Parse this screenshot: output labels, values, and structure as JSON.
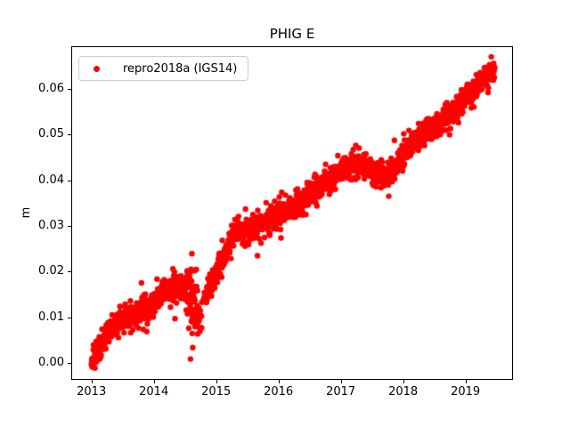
{
  "chart_data": {
    "type": "scatter",
    "title": "PHIG E",
    "xlabel": "",
    "ylabel": "m",
    "grid": false,
    "legend_position": "upper left",
    "series": [
      {
        "name": "repro2018a (IGS14)",
        "color": "#ff0000",
        "marker": "point",
        "marker_radius_px": 3.2
      }
    ],
    "xlim": [
      2012.676,
      2019.762
    ],
    "ylim": [
      -0.0037,
      0.06935
    ],
    "x_ticks": [
      2013,
      2014,
      2015,
      2016,
      2017,
      2018,
      2019
    ],
    "x_tick_labels": [
      "2013",
      "2014",
      "2015",
      "2016",
      "2017",
      "2018",
      "2019"
    ],
    "y_ticks": [
      0.0,
      0.01,
      0.02,
      0.03,
      0.04,
      0.05,
      0.06
    ],
    "y_tick_labels": [
      "0.00",
      "0.01",
      "0.02",
      "0.03",
      "0.04",
      "0.05",
      "0.06"
    ],
    "t_start": 2013.0,
    "t_end": 2019.47,
    "points_per_year": 365,
    "noise_sigma_m": 0.0013,
    "trend_anchors": [
      [
        2013.0,
        0.0
      ],
      [
        2013.1,
        0.003
      ],
      [
        2013.25,
        0.0065
      ],
      [
        2013.4,
        0.0088
      ],
      [
        2013.55,
        0.0103
      ],
      [
        2013.7,
        0.01
      ],
      [
        2013.85,
        0.0115
      ],
      [
        2014.0,
        0.013
      ],
      [
        2014.15,
        0.0152
      ],
      [
        2014.3,
        0.017
      ],
      [
        2014.45,
        0.0165
      ],
      [
        2014.58,
        0.015
      ],
      [
        2014.7,
        0.0105
      ],
      [
        2014.82,
        0.014
      ],
      [
        2014.95,
        0.0185
      ],
      [
        2015.1,
        0.0225
      ],
      [
        2015.3,
        0.0285
      ],
      [
        2015.5,
        0.029
      ],
      [
        2015.7,
        0.0302
      ],
      [
        2015.9,
        0.0315
      ],
      [
        2016.1,
        0.033
      ],
      [
        2016.3,
        0.0345
      ],
      [
        2016.5,
        0.0368
      ],
      [
        2016.7,
        0.0392
      ],
      [
        2016.9,
        0.0413
      ],
      [
        2017.1,
        0.043
      ],
      [
        2017.3,
        0.0438
      ],
      [
        2017.5,
        0.042
      ],
      [
        2017.7,
        0.0408
      ],
      [
        2017.85,
        0.0422
      ],
      [
        2018.0,
        0.0452
      ],
      [
        2018.2,
        0.049
      ],
      [
        2018.4,
        0.051
      ],
      [
        2018.6,
        0.0528
      ],
      [
        2018.8,
        0.0548
      ],
      [
        2019.0,
        0.0572
      ],
      [
        2019.2,
        0.0605
      ],
      [
        2019.35,
        0.0625
      ],
      [
        2019.47,
        0.0645
      ]
    ],
    "dip": {
      "t_from": 2014.52,
      "t_to": 2014.78,
      "extra_sigma": 0.0019
    },
    "sparse_gap": {
      "t_from": 2014.73,
      "t_to": 2014.85,
      "keep_fraction": 0.3
    }
  }
}
